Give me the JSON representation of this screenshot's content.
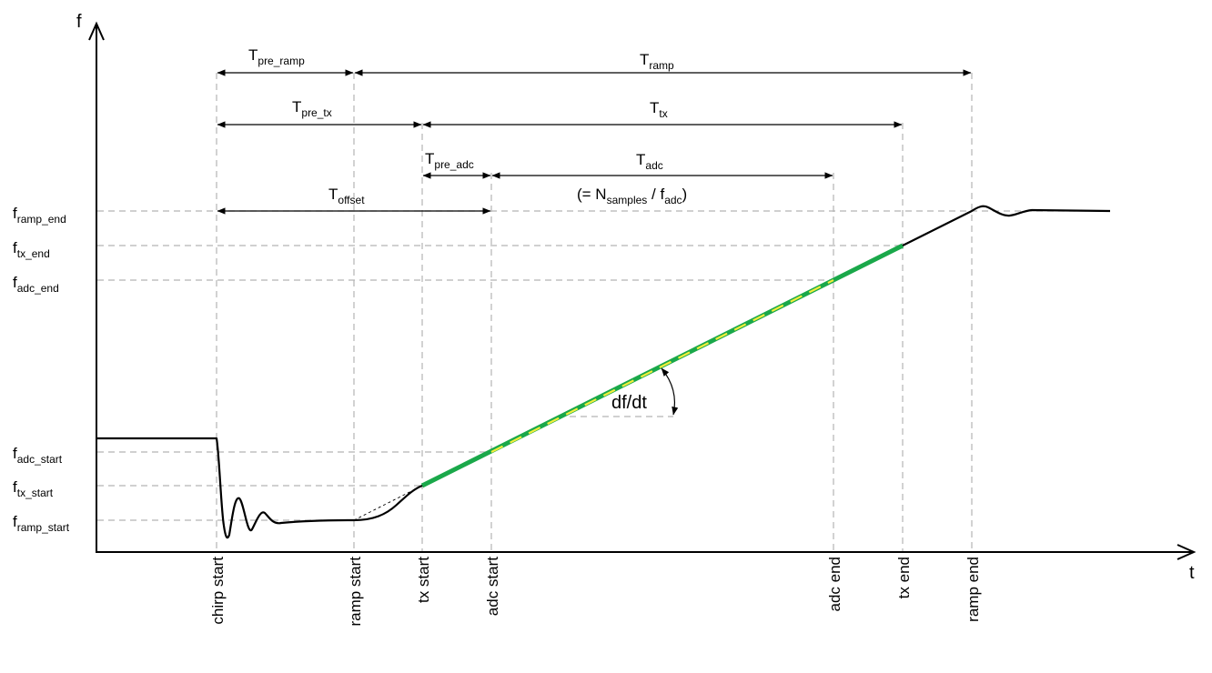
{
  "axes": {
    "y": "f",
    "x": "t"
  },
  "y_levels": [
    {
      "id": "ramp_end",
      "main": "f",
      "sub": "ramp_end"
    },
    {
      "id": "tx_end",
      "main": "f",
      "sub": "tx_end"
    },
    {
      "id": "adc_end",
      "main": "f",
      "sub": "adc_end"
    },
    {
      "id": "adc_start",
      "main": "f",
      "sub": "adc_start"
    },
    {
      "id": "tx_start",
      "main": "f",
      "sub": "tx_start"
    },
    {
      "id": "ramp_start",
      "main": "f",
      "sub": "ramp_start"
    }
  ],
  "x_events": [
    "chirp start",
    "ramp start",
    "tx start",
    "adc start",
    "adc end",
    "tx end",
    "ramp end"
  ],
  "durations": [
    {
      "id": "pre_ramp",
      "main": "T",
      "sub": "pre_ramp"
    },
    {
      "id": "ramp",
      "main": "T",
      "sub": "ramp"
    },
    {
      "id": "pre_tx",
      "main": "T",
      "sub": "pre_tx"
    },
    {
      "id": "tx",
      "main": "T",
      "sub": "tx"
    },
    {
      "id": "pre_adc",
      "main": "T",
      "sub": "pre_adc"
    },
    {
      "id": "adc",
      "main": "T",
      "sub": "adc"
    },
    {
      "id": "offset",
      "main": "T",
      "sub": "offset"
    }
  ],
  "adc_formula": {
    "open": "(= N",
    "samples": "samples",
    "mid": " / f",
    "adc": "adc",
    "close": ")"
  },
  "slope_label": "df/dt",
  "colors": {
    "adc_segment_green": "#1aa84a",
    "adc_dash_yellow": "#f2ee3c",
    "guide_gray": "#b3b3b3"
  }
}
